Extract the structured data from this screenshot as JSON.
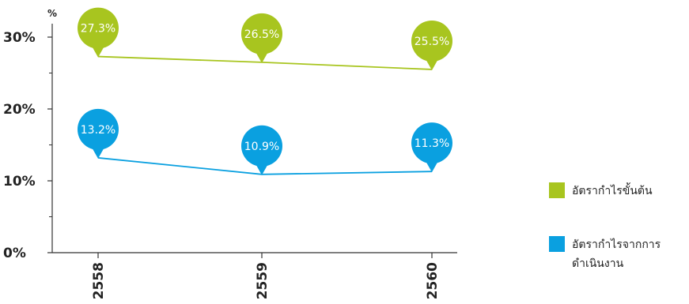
{
  "chart_data": {
    "type": "line",
    "unit_label": "%",
    "categories": [
      "2558",
      "2559",
      "2560"
    ],
    "ylim": [
      0,
      30
    ],
    "yticks": [
      {
        "value": 0,
        "label": "0%"
      },
      {
        "value": 10,
        "label": "10%"
      },
      {
        "value": 20,
        "label": "20%"
      },
      {
        "value": 30,
        "label": "30%"
      }
    ],
    "minor_yticks": [
      5,
      15,
      25
    ],
    "grid": false,
    "legend_position": "right",
    "series": [
      {
        "name": "อัตรากำไรขั้นต้น",
        "color": "#a8c51f",
        "values": [
          27.3,
          26.5,
          25.5
        ],
        "labels": [
          "27.3%",
          "26.5%",
          "25.5%"
        ]
      },
      {
        "name": "อัตรากำไรจากการดำเนินงาน",
        "color": "#0aa0e0",
        "values": [
          13.2,
          10.9,
          11.3
        ],
        "labels": [
          "13.2%",
          "10.9%",
          "11.3%"
        ]
      }
    ]
  }
}
